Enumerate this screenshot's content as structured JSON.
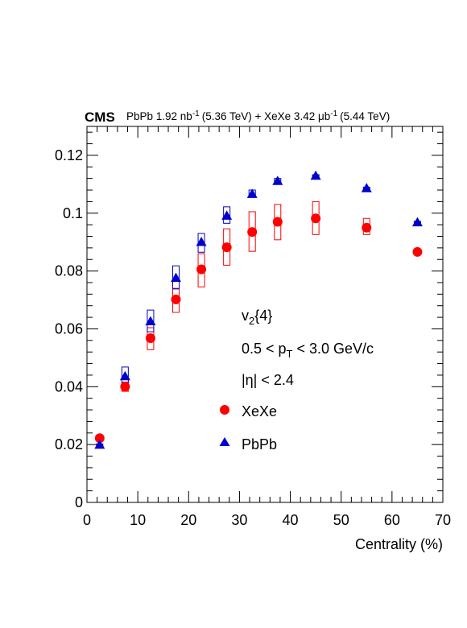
{
  "header": {
    "experiment": "CMS",
    "pbpb_part": "PbPb 1.92 nb",
    "pbpb_sup": "-1",
    "pbpb_energy": "(5.36 TeV) + XeXe 3.42 μb",
    "xexe_sup": "-1",
    "xexe_energy": "(5.44 TeV)"
  },
  "chart_data": {
    "type": "scatter",
    "xlabel": "Centrality (%)",
    "ylabel": "",
    "xlim": [
      0,
      70
    ],
    "ylim": [
      0,
      0.13
    ],
    "x_ticks": [
      0,
      10,
      20,
      30,
      40,
      50,
      60,
      70
    ],
    "y_ticks": [
      0,
      0.02,
      0.04,
      0.06,
      0.08,
      0.1,
      0.12
    ],
    "x_tick_labels": [
      "0",
      "10",
      "20",
      "30",
      "40",
      "50",
      "60",
      "70"
    ],
    "y_tick_labels": [
      "0",
      "0.02",
      "0.04",
      "0.06",
      "0.08",
      "0.1",
      "0.12"
    ],
    "grid": false,
    "legend": {
      "position": "middle-right",
      "observable_main": "v",
      "observable_sub": "2",
      "observable_rest": "{4}",
      "pt_pre": "0.5 < p",
      "pt_sub": "T",
      "pt_post": " < 3.0 GeV/c",
      "eta": "|η| < 2.4",
      "entries": [
        "XeXe",
        "PbPb"
      ]
    },
    "series": [
      {
        "name": "XeXe",
        "marker": "circle",
        "color": "#ff0000",
        "x": [
          2.5,
          7.5,
          12.5,
          17.5,
          22.5,
          27.5,
          32.5,
          37.5,
          45,
          55,
          65
        ],
        "y": [
          0.0222,
          0.04,
          0.0568,
          0.0702,
          0.0806,
          0.0882,
          0.0935,
          0.097,
          0.0982,
          0.095,
          0.0866
        ],
        "sys_low": [
          0.0216,
          0.0384,
          0.0528,
          0.0657,
          0.0745,
          0.082,
          0.0868,
          0.0908,
          0.0926,
          0.0926,
          0.0859
        ],
        "sys_high": [
          0.0227,
          0.0416,
          0.0604,
          0.074,
          0.086,
          0.0946,
          0.1005,
          0.103,
          0.104,
          0.0982,
          0.0873
        ]
      },
      {
        "name": "PbPb",
        "marker": "triangle",
        "color": "#0000cc",
        "x": [
          2.5,
          7.5,
          12.5,
          17.5,
          22.5,
          27.5,
          32.5,
          37.5,
          45,
          55,
          65
        ],
        "y": [
          0.0198,
          0.0435,
          0.0625,
          0.0775,
          0.0899,
          0.099,
          0.1065,
          0.111,
          0.1128,
          0.1085,
          0.0967
        ],
        "sys_low": [
          0.0194,
          0.0414,
          0.059,
          0.0738,
          0.0865,
          0.0965,
          0.1055,
          0.1103,
          0.1123,
          0.108,
          0.0962
        ],
        "sys_high": [
          0.0202,
          0.0468,
          0.0665,
          0.0818,
          0.093,
          0.1022,
          0.108,
          0.112,
          0.1133,
          0.109,
          0.0972
        ]
      }
    ]
  }
}
